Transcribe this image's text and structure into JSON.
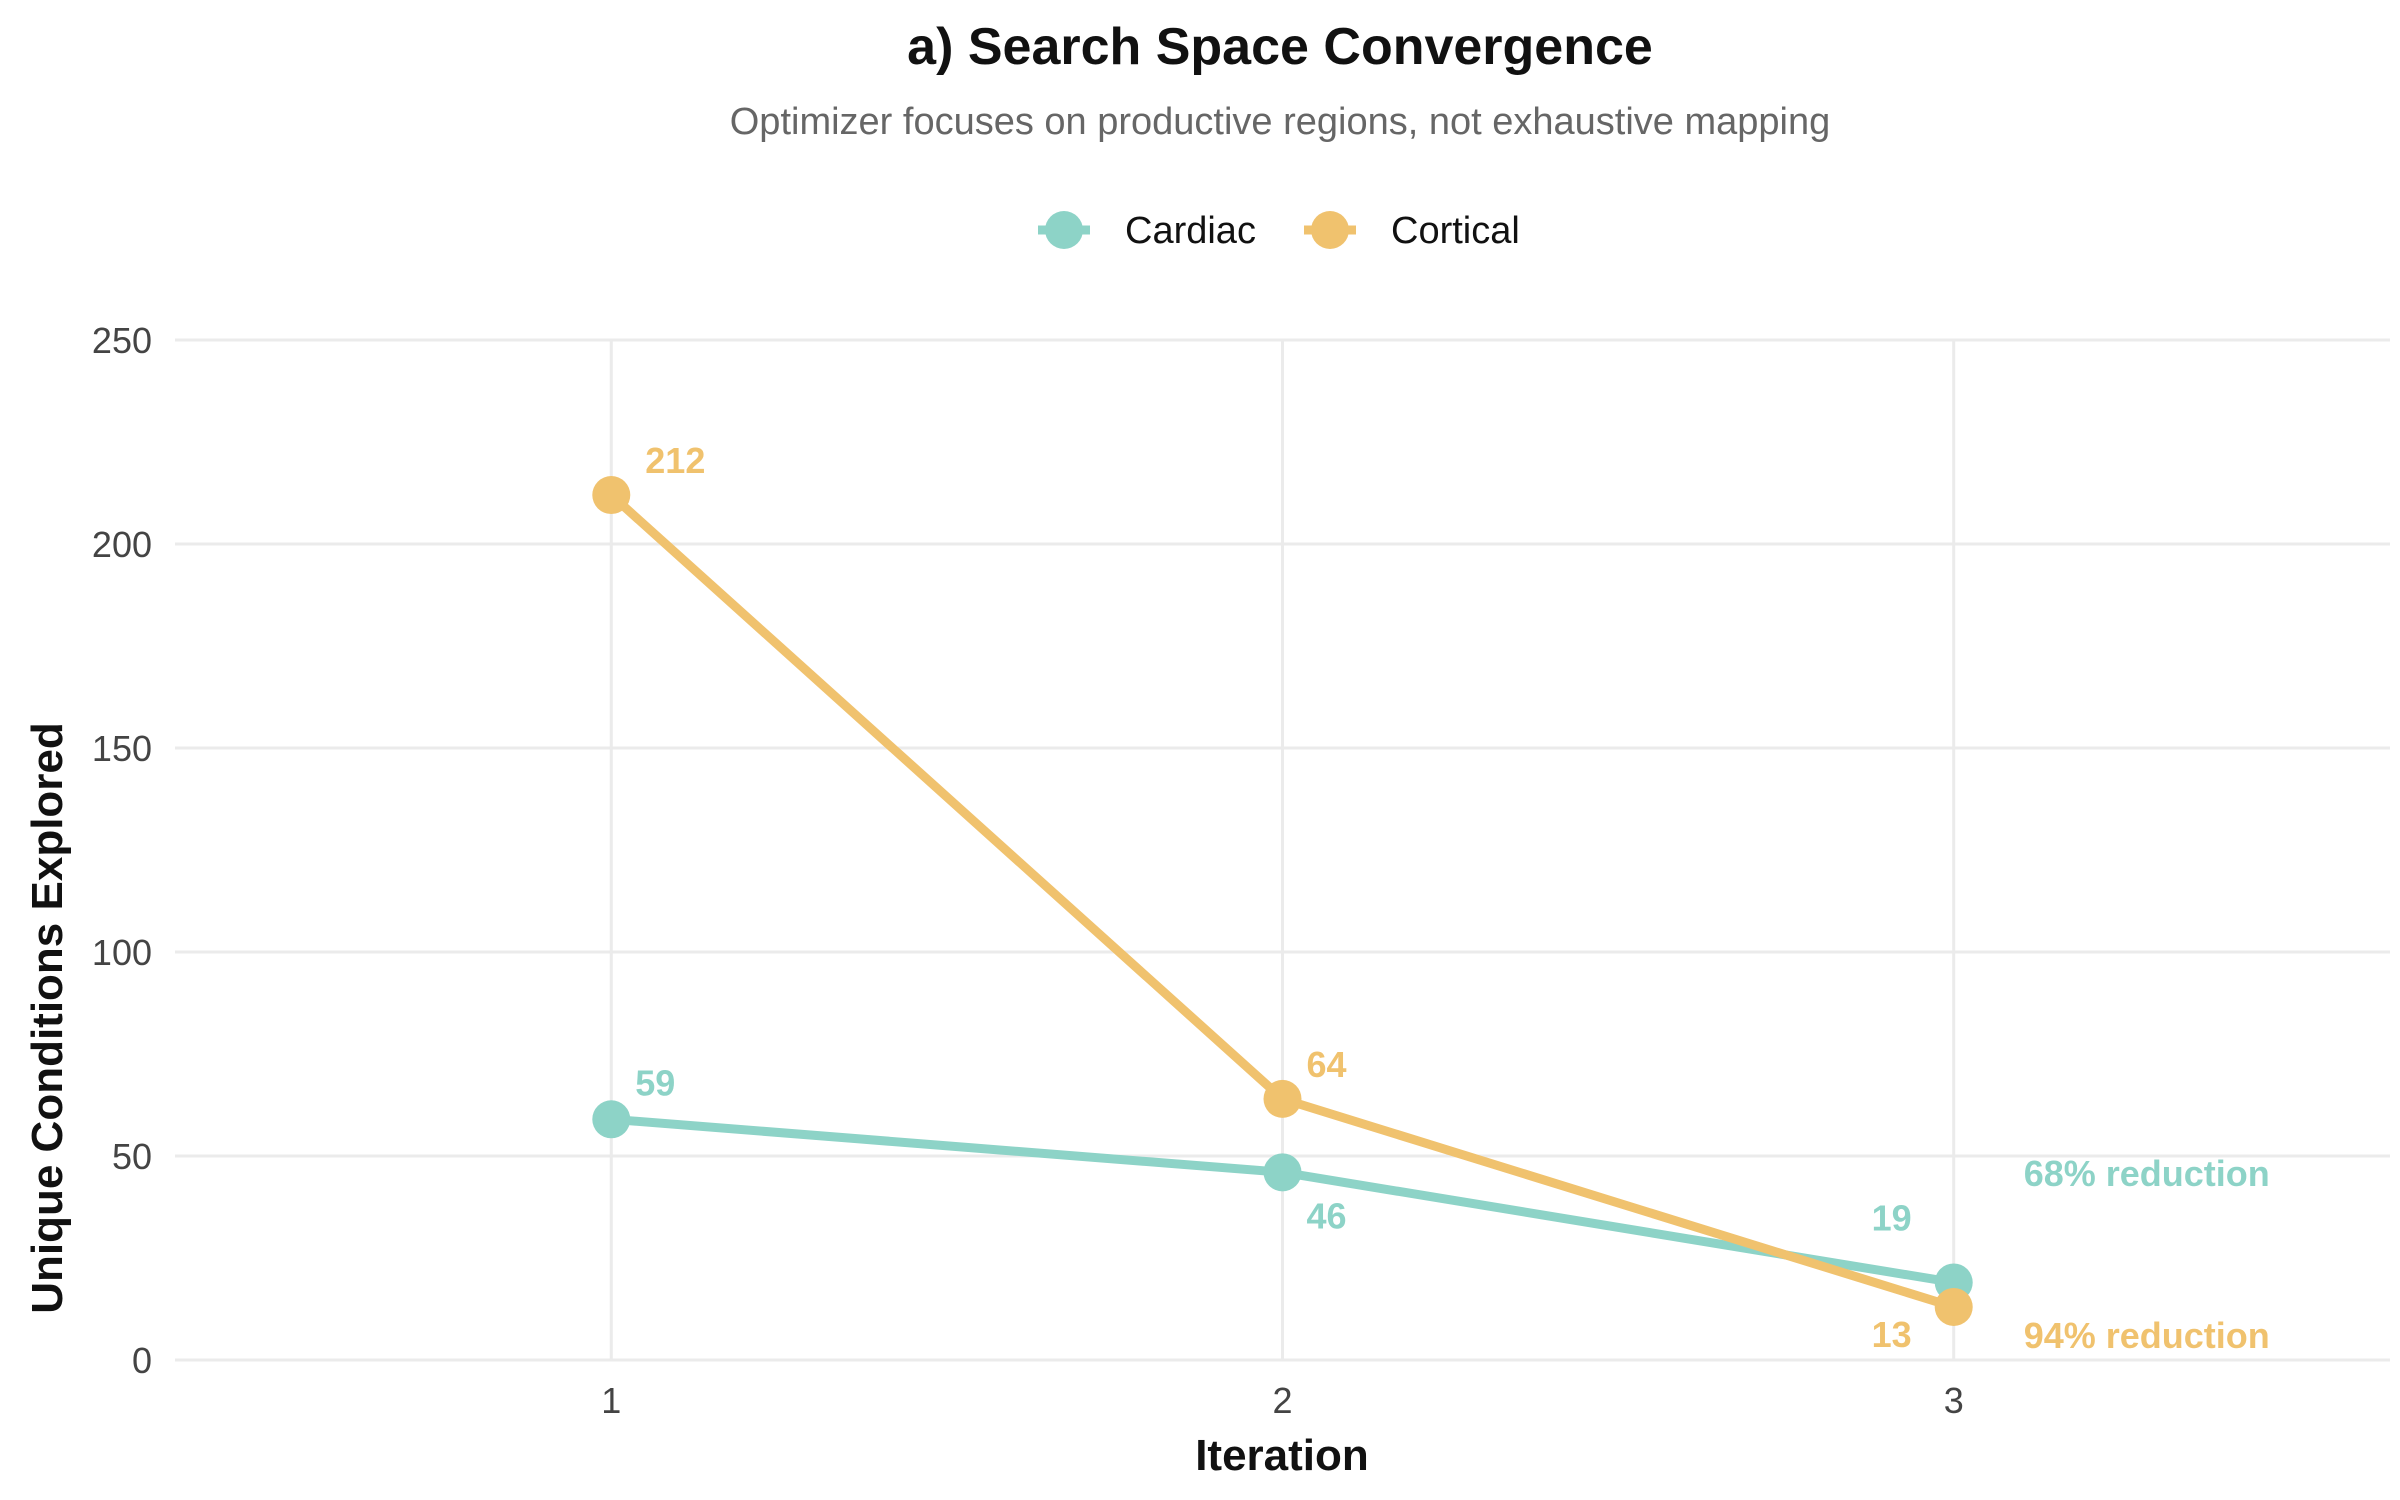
{
  "chart_data": {
    "type": "line",
    "title": "a) Search Space Convergence",
    "subtitle": "Optimizer focuses on productive regions, not exhaustive mapping",
    "xlabel": "Iteration",
    "ylabel": "Unique Conditions Explored",
    "x": [
      1,
      2,
      3
    ],
    "x_tick_labels": [
      "1",
      "2",
      "3"
    ],
    "xlim": [
      0.35,
      3.65
    ],
    "ylim": [
      0,
      250
    ],
    "y_ticks": [
      0,
      50,
      100,
      150,
      200,
      250
    ],
    "y_tick_labels": [
      "0",
      "50",
      "100",
      "150",
      "200",
      "250"
    ],
    "grid": true,
    "legend_position": "top",
    "series": [
      {
        "name": "Cardiac",
        "color": "#8dd3c7",
        "values": [
          59,
          46,
          19
        ],
        "value_labels": [
          "59",
          "46",
          "19"
        ],
        "annotation": "68% reduction"
      },
      {
        "name": "Cortical",
        "color": "#f0c26e",
        "values": [
          212,
          64,
          13
        ],
        "value_labels": [
          "212",
          "64",
          "13"
        ],
        "annotation": "94% reduction"
      }
    ]
  }
}
